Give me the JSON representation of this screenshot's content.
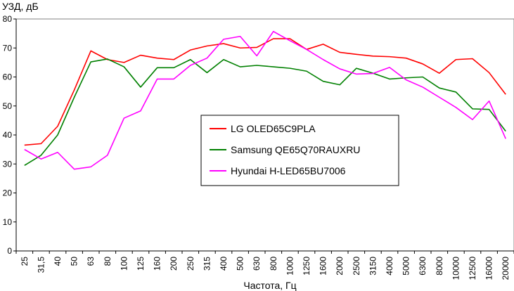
{
  "chart_data": {
    "type": "line",
    "ylabel": "УЗД, дБ",
    "xlabel": "Частота, Гц",
    "ylim": [
      0,
      80
    ],
    "yticks": [
      0,
      10,
      20,
      30,
      40,
      50,
      60,
      70,
      80
    ],
    "grid": false,
    "legend_position": "center",
    "categories": [
      "25",
      "31,5",
      "40",
      "50",
      "63",
      "80",
      "100",
      "125",
      "160",
      "200",
      "250",
      "315",
      "400",
      "500",
      "630",
      "800",
      "1000",
      "1250",
      "1600",
      "2000",
      "2500",
      "3150",
      "4000",
      "5000",
      "6300",
      "8000",
      "10000",
      "12500",
      "16000",
      "20000"
    ],
    "series": [
      {
        "name": "LG OLED65C9PLA",
        "color": "#ff0000",
        "values": [
          36.5,
          37,
          43,
          55.5,
          69,
          66,
          65,
          67.5,
          66.5,
          66,
          69.3,
          70.7,
          71.5,
          70,
          70.2,
          73.2,
          73.2,
          69.5,
          71.3,
          68.5,
          67.8,
          67.2,
          67,
          66.5,
          64.5,
          61.3,
          66,
          66.3,
          61.5,
          54
        ]
      },
      {
        "name": "Samsung QE65Q70RAUXRU",
        "color": "#008000",
        "values": [
          29.5,
          33,
          40,
          53,
          65.2,
          66.2,
          63.5,
          56.5,
          63.2,
          63.2,
          66,
          61.5,
          66,
          63.5,
          64,
          63.5,
          63,
          62,
          58.5,
          57.3,
          63,
          61.3,
          59.3,
          59.7,
          60,
          56.2,
          54.8,
          49,
          48.8,
          41.3
        ]
      },
      {
        "name": "Hyundai H-LED65BU7006",
        "color": "#ff00ff",
        "values": [
          35,
          31.7,
          34,
          28.2,
          29,
          33,
          45.8,
          48.3,
          59.3,
          59.3,
          64,
          66.5,
          73,
          74,
          67.3,
          75.7,
          72.5,
          69.5,
          66,
          62.8,
          61,
          61.2,
          63.3,
          59,
          56.5,
          53,
          49.5,
          45.3,
          51.7,
          38.7
        ]
      }
    ]
  }
}
